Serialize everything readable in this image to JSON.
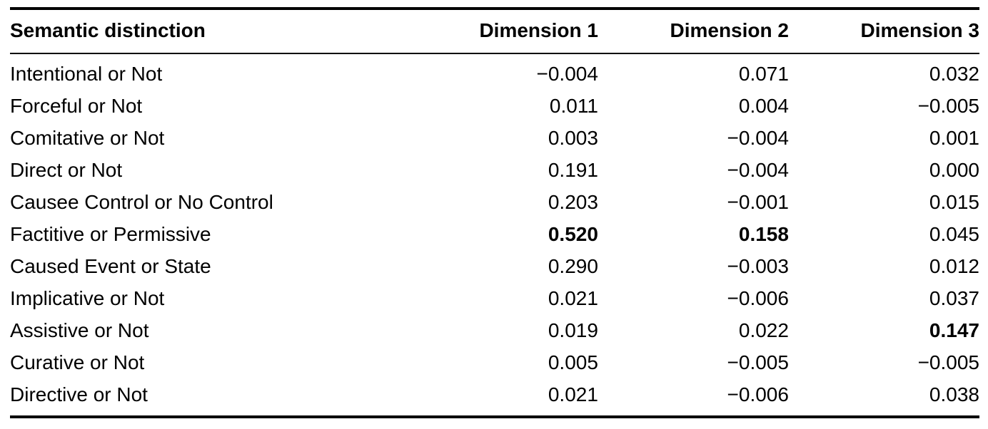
{
  "table": {
    "columns": [
      "Semantic distinction",
      "Dimension 1",
      "Dimension 2",
      "Dimension 3"
    ],
    "rows": [
      {
        "label": "Intentional or Not",
        "values": [
          "−0.004",
          "0.071",
          "0.032"
        ],
        "bold": [
          false,
          false,
          false
        ]
      },
      {
        "label": "Forceful or Not",
        "values": [
          "0.011",
          "0.004",
          "−0.005"
        ],
        "bold": [
          false,
          false,
          false
        ]
      },
      {
        "label": "Comitative or Not",
        "values": [
          "0.003",
          "−0.004",
          "0.001"
        ],
        "bold": [
          false,
          false,
          false
        ]
      },
      {
        "label": "Direct or Not",
        "values": [
          "0.191",
          "−0.004",
          "0.000"
        ],
        "bold": [
          false,
          false,
          false
        ]
      },
      {
        "label": "Causee Control or No Control",
        "values": [
          "0.203",
          "−0.001",
          "0.015"
        ],
        "bold": [
          false,
          false,
          false
        ]
      },
      {
        "label": "Factitive or Permissive",
        "values": [
          "0.520",
          "0.158",
          "0.045"
        ],
        "bold": [
          true,
          true,
          false
        ]
      },
      {
        "label": "Caused Event or State",
        "values": [
          "0.290",
          "−0.003",
          "0.012"
        ],
        "bold": [
          false,
          false,
          false
        ]
      },
      {
        "label": "Implicative or Not",
        "values": [
          "0.021",
          "−0.006",
          "0.037"
        ],
        "bold": [
          false,
          false,
          false
        ]
      },
      {
        "label": "Assistive or Not",
        "values": [
          "0.019",
          "0.022",
          "0.147"
        ],
        "bold": [
          false,
          false,
          true
        ]
      },
      {
        "label": "Curative or Not",
        "values": [
          "0.005",
          "−0.005",
          "−0.005"
        ],
        "bold": [
          false,
          false,
          false
        ]
      },
      {
        "label": "Directive or Not",
        "values": [
          "0.021",
          "−0.006",
          "0.038"
        ],
        "bold": [
          false,
          false,
          false
        ]
      }
    ]
  }
}
